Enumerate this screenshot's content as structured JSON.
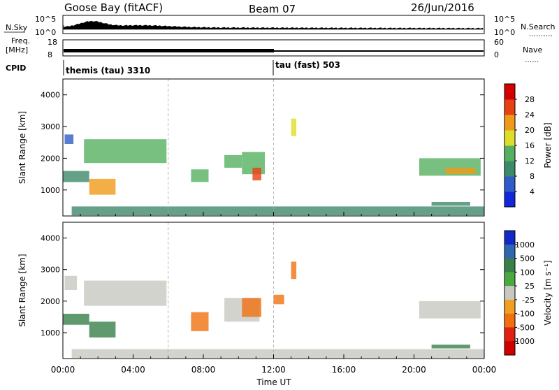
{
  "header": {
    "station": "Goose Bay (fitACF)",
    "beam": "Beam 07",
    "date": "26/Jun/2016"
  },
  "top_panels": {
    "nsky_label": "N.Sky",
    "nsky_ticks": [
      "10^5",
      "10^0"
    ],
    "nsearch_label": "N.Search",
    "nsearch_ticks": [
      "10^5",
      "10^0"
    ],
    "freq_label_1": "Freq.",
    "freq_label_2": "[MHz]",
    "freq_ticks": [
      "18",
      "8"
    ],
    "nave_label": "Nave",
    "nave_ticks": [
      "60",
      "0"
    ],
    "cpid_label": "CPID",
    "cpid_segments": [
      {
        "label": "themis (tau) 3310",
        "start_hour": 0
      },
      {
        "label": "tau (fast) 503",
        "start_hour": 12
      }
    ]
  },
  "x_axis": {
    "label": "Time UT",
    "ticks": [
      "00:00",
      "04:00",
      "08:00",
      "12:00",
      "16:00",
      "20:00",
      "00:00"
    ]
  },
  "chart_data": [
    {
      "type": "heatmap",
      "panel": "power",
      "ylabel": "Slant Range [km]",
      "yticks": [
        1000,
        2000,
        3000,
        4000
      ],
      "ylim": [
        180,
        4500
      ],
      "xlim_hours": [
        0,
        24
      ],
      "colorbar_label": "Power [dB]",
      "colorbar_ticks": [
        "4",
        "8",
        "12",
        "16",
        "20",
        "24",
        "28"
      ],
      "colorbar_colors": [
        "#1028d8",
        "#2e5cc8",
        "#3d8a6a",
        "#55b060",
        "#dede28",
        "#f09a1a",
        "#e84010",
        "#d40000"
      ],
      "regions": [
        {
          "t0": 0.1,
          "t1": 0.6,
          "r0": 2450,
          "r1": 2750,
          "level": 6
        },
        {
          "t0": 1.2,
          "t1": 5.9,
          "r0": 1850,
          "r1": 2600,
          "level": 14
        },
        {
          "t0": 0.0,
          "t1": 1.5,
          "r0": 1250,
          "r1": 1600,
          "level": 10
        },
        {
          "t0": 1.5,
          "t1": 3.0,
          "r0": 850,
          "r1": 1350,
          "level": 22
        },
        {
          "t0": 7.3,
          "t1": 8.3,
          "r0": 1250,
          "r1": 1650,
          "level": 14
        },
        {
          "t0": 9.2,
          "t1": 10.2,
          "r0": 1700,
          "r1": 2100,
          "level": 14
        },
        {
          "t0": 10.2,
          "t1": 11.5,
          "r0": 1500,
          "r1": 2200,
          "level": 12
        },
        {
          "t0": 10.8,
          "t1": 11.3,
          "r0": 1300,
          "r1": 1700,
          "level": 26
        },
        {
          "t0": 13.0,
          "t1": 13.3,
          "r0": 2700,
          "r1": 3250,
          "level": 16
        },
        {
          "t0": 20.3,
          "t1": 23.8,
          "r0": 1450,
          "r1": 2000,
          "level": 14
        },
        {
          "t0": 21.8,
          "t1": 23.5,
          "r0": 1500,
          "r1": 1700,
          "level": 20
        },
        {
          "t0": 21.0,
          "t1": 23.2,
          "r0": 500,
          "r1": 620,
          "level": 10
        },
        {
          "t0": 0.5,
          "t1": 24.0,
          "r0": 200,
          "r1": 480,
          "level": 8
        }
      ]
    },
    {
      "type": "heatmap",
      "panel": "velocity",
      "ylabel": "Slant Range [km]",
      "yticks": [
        1000,
        2000,
        3000,
        4000
      ],
      "ylim": [
        180,
        4500
      ],
      "xlim_hours": [
        0,
        24
      ],
      "colorbar_label": "Velocity [m s^-1]",
      "colorbar_ticks": [
        "1000",
        "500",
        "100",
        "25",
        "-25",
        "-100",
        "-500",
        "-1000"
      ],
      "colorbar_colors": [
        "#1428c8",
        "#2e66b0",
        "#3a7f4a",
        "#4aaa40",
        "#c8c8c0",
        "#f0a020",
        "#f07010",
        "#e02010",
        "#d00000"
      ],
      "regions": [
        {
          "t0": 0.1,
          "t1": 0.8,
          "r0": 2350,
          "r1": 2800,
          "value": 0
        },
        {
          "t0": 1.2,
          "t1": 5.9,
          "r0": 1850,
          "r1": 2650,
          "value": 0
        },
        {
          "t0": 0.0,
          "t1": 1.5,
          "r0": 1250,
          "r1": 1600,
          "value": 300
        },
        {
          "t0": 1.5,
          "t1": 3.0,
          "r0": 850,
          "r1": 1350,
          "value": 300
        },
        {
          "t0": 7.3,
          "t1": 8.3,
          "r0": 1050,
          "r1": 1650,
          "value": -400
        },
        {
          "t0": 9.2,
          "t1": 11.2,
          "r0": 1350,
          "r1": 2100,
          "value": 0
        },
        {
          "t0": 10.2,
          "t1": 11.3,
          "r0": 1500,
          "r1": 2100,
          "value": -400
        },
        {
          "t0": 13.0,
          "t1": 13.3,
          "r0": 2700,
          "r1": 3250,
          "value": -400
        },
        {
          "t0": 12.0,
          "t1": 12.6,
          "r0": 1900,
          "r1": 2200,
          "value": -400
        },
        {
          "t0": 20.3,
          "t1": 23.8,
          "r0": 1450,
          "r1": 2000,
          "value": 0
        },
        {
          "t0": 21.0,
          "t1": 23.2,
          "r0": 500,
          "r1": 620,
          "value": 300
        },
        {
          "t0": 0.5,
          "t1": 24.0,
          "r0": 200,
          "r1": 480,
          "value": 0
        }
      ]
    }
  ]
}
